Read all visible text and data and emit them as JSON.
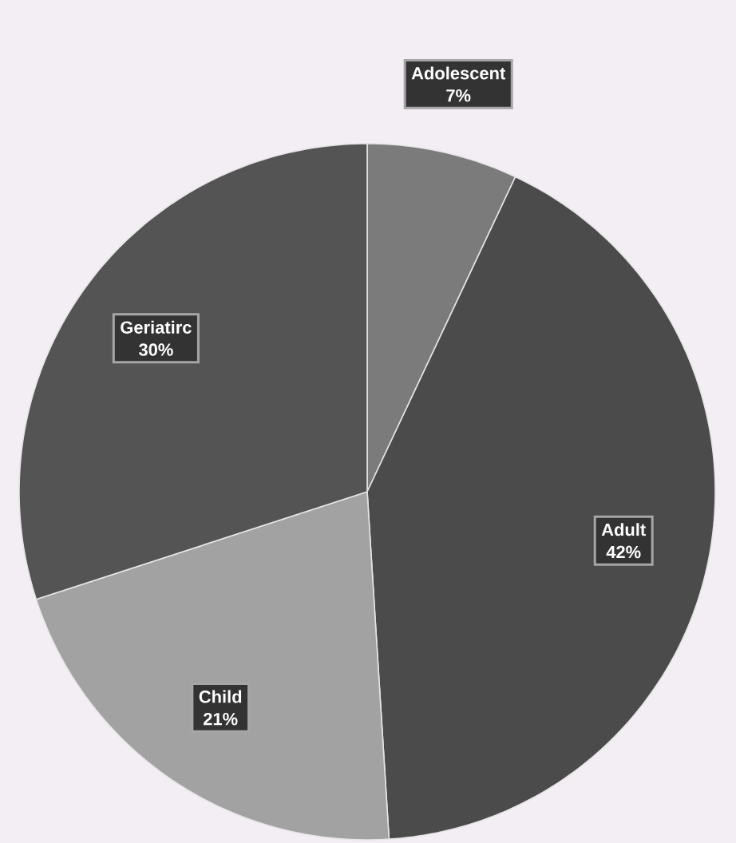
{
  "chart_data": {
    "type": "pie",
    "categories": [
      "Adolescent",
      "Adult",
      "Child",
      "Geriatirc"
    ],
    "values": [
      7,
      42,
      21,
      30
    ],
    "value_labels": [
      "7%",
      "42%",
      "21%",
      "30%"
    ],
    "colors": [
      "#7b7b7b",
      "#4b4b4b",
      "#a2a2a2",
      "#545454"
    ]
  }
}
